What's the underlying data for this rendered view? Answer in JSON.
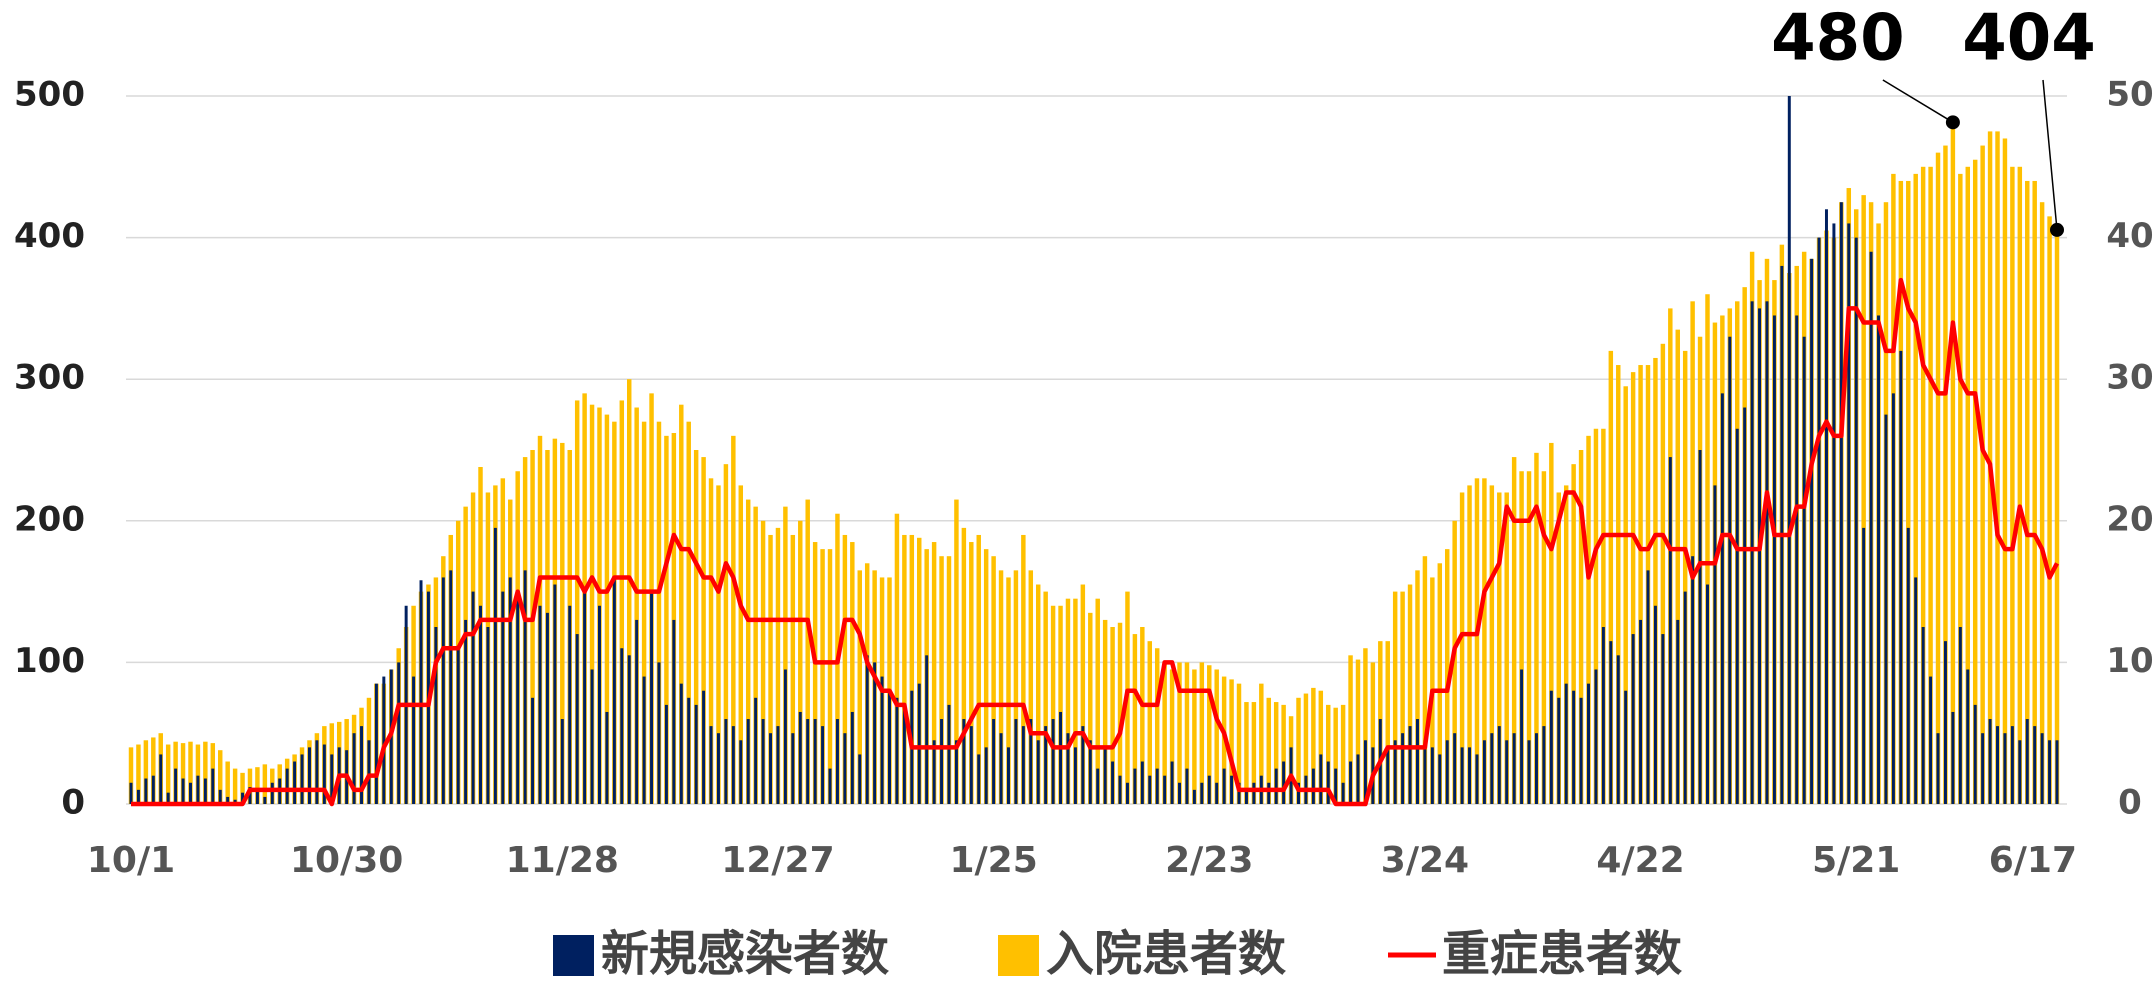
{
  "chart_data": {
    "type": "bar",
    "categories": [
      "10/1",
      null,
      null,
      null,
      null,
      null,
      null,
      null,
      null,
      null,
      null,
      null,
      null,
      null,
      null,
      null,
      null,
      null,
      null,
      null,
      null,
      null,
      null,
      null,
      null,
      null,
      null,
      null,
      null,
      "10/30",
      null,
      null,
      null,
      null,
      null,
      null,
      null,
      null,
      null,
      null,
      null,
      null,
      null,
      null,
      null,
      null,
      null,
      null,
      null,
      null,
      null,
      null,
      null,
      null,
      null,
      null,
      null,
      null,
      "11/28",
      null,
      null,
      null,
      null,
      null,
      null,
      null,
      null,
      null,
      null,
      null,
      null,
      null,
      null,
      null,
      null,
      null,
      null,
      null,
      null,
      null,
      null,
      null,
      null,
      null,
      null,
      null,
      null,
      "12/27",
      null,
      null,
      null,
      null,
      null,
      null,
      null,
      null,
      null,
      null,
      null,
      null,
      null,
      null,
      null,
      null,
      null,
      null,
      null,
      null,
      null,
      null,
      null,
      null,
      null,
      null,
      null,
      null,
      "1/25",
      null,
      null,
      null,
      null,
      null,
      null,
      null,
      null,
      null,
      null,
      null,
      null,
      null,
      null,
      null,
      null,
      null,
      null,
      null,
      null,
      null,
      null,
      null,
      null,
      null,
      null,
      null,
      null,
      "2/23",
      null,
      null,
      null,
      null,
      null,
      null,
      null,
      null,
      null,
      null,
      null,
      null,
      null,
      null,
      null,
      null,
      null,
      null,
      null,
      null,
      null,
      null,
      null,
      null,
      null,
      null,
      null,
      null,
      "3/24",
      null,
      null,
      null,
      null,
      null,
      null,
      null,
      null,
      null,
      null,
      null,
      null,
      null,
      null,
      null,
      null,
      null,
      null,
      null,
      null,
      null,
      null,
      null,
      null,
      null,
      null,
      null,
      null,
      "4/22",
      null,
      null,
      null,
      null,
      null,
      null,
      null,
      null,
      null,
      null,
      null,
      null,
      null,
      null,
      null,
      null,
      null,
      null,
      null,
      null,
      null,
      null,
      null,
      null,
      null,
      null,
      null,
      null,
      "5/21",
      null,
      null,
      null,
      null,
      null,
      null,
      null,
      null,
      null,
      null,
      null,
      null,
      null,
      null,
      null,
      null,
      null,
      null,
      null,
      null,
      null,
      null,
      null,
      null,
      null,
      null,
      "6/17"
    ],
    "series": [
      {
        "name": "新規感染者数",
        "color": "#002060",
        "values": [
          15,
          10,
          18,
          20,
          35,
          8,
          25,
          18,
          15,
          20,
          18,
          25,
          10,
          5,
          3,
          8,
          12,
          10,
          5,
          15,
          18,
          25,
          30,
          35,
          40,
          45,
          42,
          35,
          40,
          38,
          50,
          55,
          45,
          85,
          90,
          95,
          100,
          140,
          90,
          158,
          150,
          125,
          160,
          165,
          110,
          130,
          150,
          140,
          125,
          195,
          150,
          160,
          145,
          165,
          75,
          140,
          135,
          155,
          60,
          140,
          120,
          150,
          95,
          140,
          65,
          160,
          110,
          105,
          130,
          90,
          150,
          100,
          70,
          130,
          85,
          75,
          70,
          80,
          55,
          50,
          60,
          55,
          45,
          60,
          75,
          60,
          50,
          55,
          95,
          50,
          65,
          60,
          60,
          55,
          25,
          60,
          50,
          65,
          35,
          105,
          100,
          90,
          80,
          75,
          70,
          80,
          85,
          105,
          45,
          60,
          70,
          45,
          60,
          55,
          35,
          40,
          60,
          50,
          40,
          60,
          55,
          60,
          45,
          55,
          60,
          65,
          50,
          40,
          55,
          45,
          25,
          40,
          30,
          20,
          15,
          25,
          30,
          20,
          25,
          20,
          30,
          15,
          25,
          10,
          15,
          20,
          15,
          25,
          20,
          15,
          10,
          15,
          20,
          15,
          25,
          30,
          40,
          15,
          20,
          25,
          35,
          30,
          25,
          15,
          30,
          35,
          45,
          40,
          60,
          40,
          45,
          50,
          55,
          60,
          45,
          40,
          35,
          45,
          50,
          40,
          40,
          35,
          45,
          50,
          55,
          45,
          50,
          95,
          45,
          50,
          55,
          80,
          75,
          85,
          80,
          75,
          85,
          95,
          125,
          115,
          105,
          80,
          120,
          130,
          165,
          140,
          120,
          245,
          130,
          150,
          175,
          250,
          155,
          225,
          290,
          330,
          265,
          280,
          355,
          350,
          355,
          345,
          380,
          500,
          345,
          330,
          385,
          400,
          420,
          410,
          425,
          410,
          400,
          195,
          390,
          345,
          275,
          290,
          320,
          195,
          160,
          125,
          90,
          50,
          115,
          65,
          125,
          95,
          70,
          50,
          60,
          55,
          50,
          55,
          45,
          60,
          55,
          50,
          45,
          45
        ]
      },
      {
        "name": "入院患者数",
        "color": "#ffc000",
        "values": [
          40,
          42,
          45,
          47,
          50,
          42,
          44,
          43,
          44,
          42,
          44,
          43,
          38,
          30,
          25,
          22,
          25,
          26,
          28,
          25,
          28,
          32,
          35,
          40,
          45,
          50,
          55,
          57,
          58,
          60,
          63,
          68,
          75,
          85,
          85,
          95,
          110,
          125,
          140,
          150,
          155,
          160,
          175,
          190,
          200,
          210,
          220,
          238,
          220,
          225,
          230,
          215,
          235,
          245,
          250,
          260,
          250,
          258,
          255,
          250,
          285,
          290,
          282,
          280,
          275,
          270,
          285,
          300,
          280,
          270,
          290,
          270,
          260,
          262,
          282,
          270,
          250,
          245,
          230,
          225,
          240,
          260,
          225,
          215,
          210,
          200,
          190,
          195,
          210,
          190,
          200,
          215,
          185,
          180,
          180,
          205,
          190,
          185,
          165,
          170,
          165,
          160,
          160,
          205,
          190,
          190,
          188,
          180,
          185,
          175,
          175,
          215,
          195,
          185,
          190,
          180,
          175,
          165,
          160,
          165,
          190,
          165,
          155,
          150,
          140,
          140,
          145,
          145,
          155,
          135,
          145,
          130,
          125,
          128,
          150,
          120,
          125,
          115,
          110,
          100,
          95,
          100,
          100,
          95,
          100,
          98,
          95,
          90,
          88,
          85,
          72,
          72,
          85,
          75,
          72,
          70,
          62,
          75,
          78,
          82,
          80,
          70,
          68,
          70,
          105,
          102,
          110,
          100,
          115,
          115,
          150,
          150,
          155,
          165,
          175,
          160,
          170,
          180,
          200,
          220,
          225,
          230,
          230,
          225,
          220,
          220,
          245,
          235,
          235,
          248,
          235,
          255,
          220,
          225,
          240,
          250,
          260,
          265,
          265,
          320,
          310,
          295,
          305,
          310,
          310,
          315,
          325,
          350,
          335,
          320,
          355,
          330,
          360,
          340,
          345,
          350,
          355,
          365,
          390,
          370,
          385,
          370,
          395,
          375,
          380,
          390,
          385,
          400,
          405,
          400,
          425,
          435,
          420,
          430,
          425,
          410,
          425,
          445,
          440,
          440,
          445,
          450,
          450,
          460,
          465,
          480,
          445,
          450,
          455,
          465,
          475,
          475,
          470,
          450,
          450,
          440,
          440,
          425,
          415,
          404
        ]
      },
      {
        "name": "重症患者数",
        "color": "#ff0000",
        "axis": "y2",
        "values": [
          0,
          0,
          0,
          0,
          0,
          0,
          0,
          0,
          0,
          0,
          0,
          0,
          0,
          0,
          0,
          0,
          1,
          1,
          1,
          1,
          1,
          1,
          1,
          1,
          1,
          1,
          1,
          0,
          2,
          2,
          1,
          1,
          2,
          2,
          4,
          5,
          7,
          7,
          7,
          7,
          7,
          10,
          11,
          11,
          11,
          12,
          12,
          13,
          13,
          13,
          13,
          13,
          15,
          13,
          13,
          16,
          16,
          16,
          16,
          16,
          16,
          15,
          16,
          15,
          15,
          16,
          16,
          16,
          15,
          15,
          15,
          15,
          17,
          19,
          18,
          18,
          17,
          16,
          16,
          15,
          17,
          16,
          14,
          13,
          13,
          13,
          13,
          13,
          13,
          13,
          13,
          13,
          10,
          10,
          10,
          10,
          13,
          13,
          12,
          10,
          9,
          8,
          8,
          7,
          7,
          4,
          4,
          4,
          4,
          4,
          4,
          4,
          5,
          6,
          7,
          7,
          7,
          7,
          7,
          7,
          7,
          5,
          5,
          5,
          4,
          4,
          4,
          5,
          5,
          4,
          4,
          4,
          4,
          5,
          8,
          8,
          7,
          7,
          7,
          10,
          10,
          8,
          8,
          8,
          8,
          8,
          6,
          5,
          3,
          1,
          1,
          1,
          1,
          1,
          1,
          1,
          2,
          1,
          1,
          1,
          1,
          1,
          0,
          0,
          0,
          0,
          0,
          2,
          3,
          4,
          4,
          4,
          4,
          4,
          4,
          8,
          8,
          8,
          11,
          12,
          12,
          12,
          15,
          16,
          17,
          21,
          20,
          20,
          20,
          21,
          19,
          18,
          20,
          22,
          22,
          21,
          16,
          18,
          19,
          19,
          19,
          19,
          19,
          18,
          18,
          19,
          19,
          18,
          18,
          18,
          16,
          17,
          17,
          17,
          19,
          19,
          18,
          18,
          18,
          18,
          22,
          19,
          19,
          19,
          21,
          21,
          24,
          26,
          27,
          26,
          26,
          35,
          35,
          34,
          34,
          34,
          32,
          32,
          37,
          35,
          34,
          31,
          30,
          29,
          29,
          34,
          30,
          29,
          29,
          25,
          24,
          19,
          18,
          18,
          21,
          19,
          19,
          18,
          16,
          17
        ]
      }
    ],
    "ylim": [
      0,
      500
    ],
    "yticks": [
      0,
      100,
      200,
      300,
      400,
      500
    ],
    "y2lim": [
      0,
      50
    ],
    "y2ticks": [
      0,
      10,
      20,
      30,
      40,
      50
    ],
    "grid": true,
    "legend": "bottom"
  }
}
